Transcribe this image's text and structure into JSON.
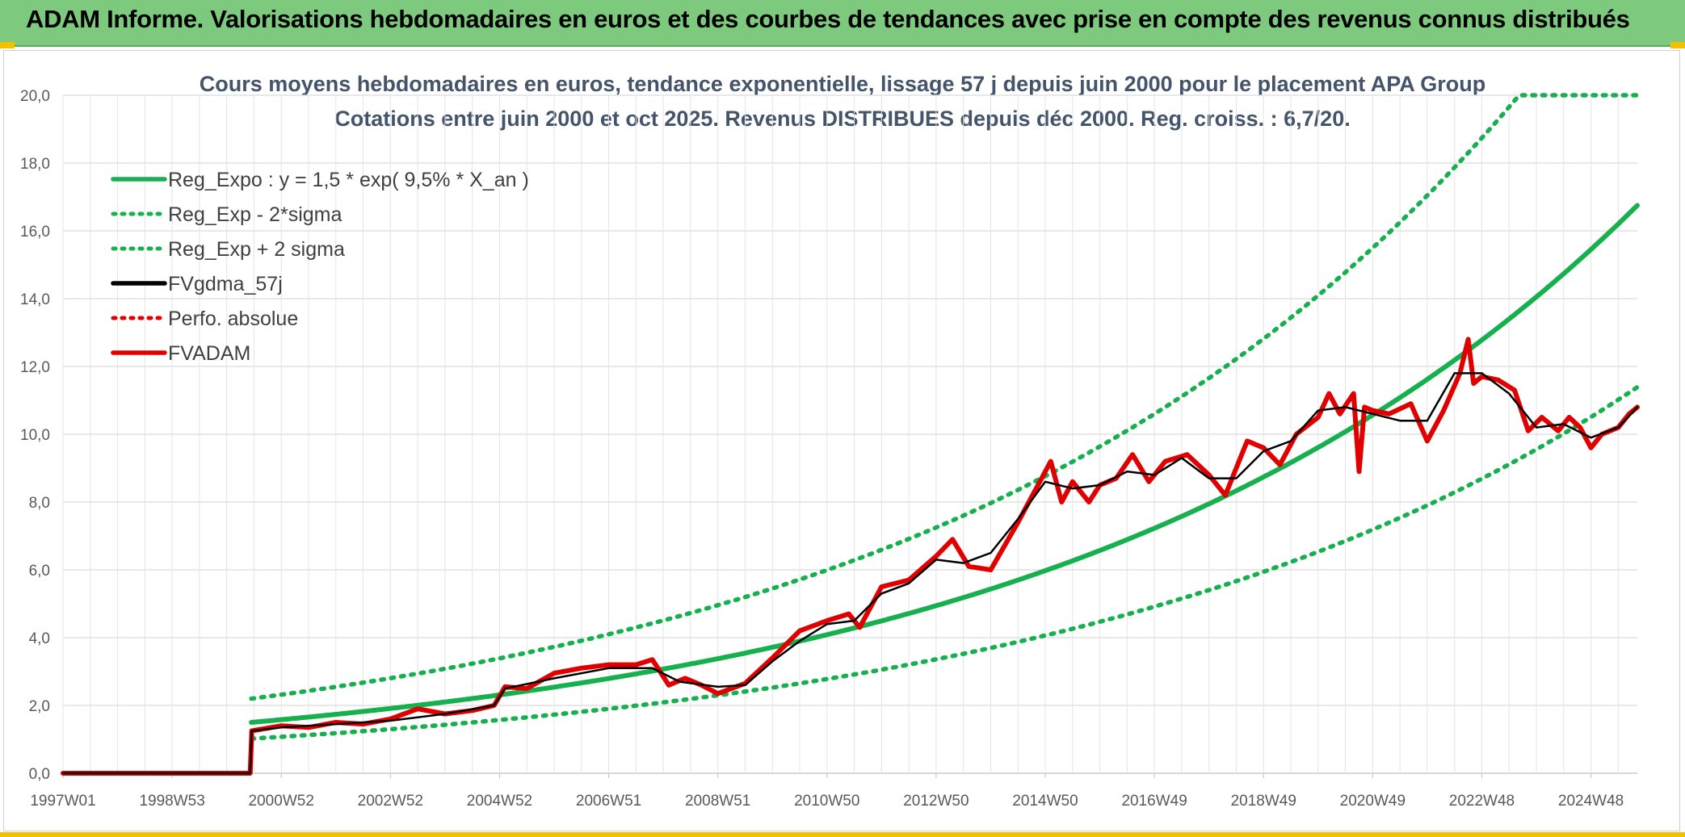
{
  "banner": {
    "title": "ADAM Informe. Valorisations hebdomadaires en euros et des courbes de tendances avec prise en compte des revenus connus distribués"
  },
  "chart_data": {
    "type": "line",
    "title": "Cours moyens hebdomadaires en euros, tendance exponentielle, lissage 57 j depuis juin 2000 pour le placement APA Group",
    "subtitle": "Cotations entre juin 2000 et oct 2025. Revenus DISTRIBUES depuis déc 2000. Reg. croiss. : 6,7/20.",
    "xlabel": "",
    "ylabel": "",
    "x_range": [
      1997.0,
      2025.85
    ],
    "ylim": [
      0,
      20
    ],
    "y_ticks": [
      "0,0",
      "2,0",
      "4,0",
      "6,0",
      "8,0",
      "10,0",
      "12,0",
      "14,0",
      "16,0",
      "18,0",
      "20,0"
    ],
    "x_ticks": [
      {
        "label": "1997W01",
        "x": 1997.0
      },
      {
        "label": "1998W53",
        "x": 1999.0
      },
      {
        "label": "2000W52",
        "x": 2001.0
      },
      {
        "label": "2002W52",
        "x": 2003.0
      },
      {
        "label": "2004W52",
        "x": 2005.0
      },
      {
        "label": "2006W51",
        "x": 2007.0
      },
      {
        "label": "2008W51",
        "x": 2009.0
      },
      {
        "label": "2010W50",
        "x": 2011.0
      },
      {
        "label": "2012W50",
        "x": 2013.0
      },
      {
        "label": "2014W50",
        "x": 2015.0
      },
      {
        "label": "2016W49",
        "x": 2017.0
      },
      {
        "label": "2018W49",
        "x": 2019.0
      },
      {
        "label": "2020W49",
        "x": 2021.0
      },
      {
        "label": "2022W48",
        "x": 2023.0
      },
      {
        "label": "2024W48",
        "x": 2025.0
      }
    ],
    "grid": true,
    "legend_position": "top-left",
    "series": [
      {
        "name": "Reg_Expo : y = 1,5 * exp( 9,5% *  X_an )",
        "color": "#17b04f",
        "style": "solid",
        "start_x": 2000.45,
        "base_value": 1.5,
        "growth_rate": 0.095
      },
      {
        "name": "Reg_Exp - 2*sigma",
        "color": "#17b04f",
        "style": "dotted",
        "start_x": 2000.45,
        "base_value": 1.02,
        "growth_rate": 0.095
      },
      {
        "name": "Reg_Exp + 2 sigma",
        "color": "#17b04f",
        "style": "dotted",
        "start_x": 2000.45,
        "base_value": 2.2,
        "growth_rate": 0.095,
        "cap": 20
      },
      {
        "name": "FVgdma_57j",
        "color": "#000000",
        "style": "solid",
        "smoothed_of": "FVADAM",
        "points": [
          [
            1997.0,
            0
          ],
          [
            2000.43,
            0
          ],
          [
            2000.46,
            1.25
          ],
          [
            2001,
            1.35
          ],
          [
            2002,
            1.45
          ],
          [
            2003,
            1.55
          ],
          [
            2004,
            1.75
          ],
          [
            2004.9,
            2.0
          ],
          [
            2005.1,
            2.5
          ],
          [
            2006,
            2.8
          ],
          [
            2007,
            3.1
          ],
          [
            2007.8,
            3.1
          ],
          [
            2008.3,
            2.7
          ],
          [
            2009,
            2.55
          ],
          [
            2009.5,
            2.6
          ],
          [
            2010,
            3.3
          ],
          [
            2010.5,
            3.9
          ],
          [
            2011,
            4.4
          ],
          [
            2011.5,
            4.5
          ],
          [
            2012,
            5.3
          ],
          [
            2012.5,
            5.6
          ],
          [
            2013,
            6.3
          ],
          [
            2013.5,
            6.2
          ],
          [
            2014,
            6.5
          ],
          [
            2014.5,
            7.5
          ],
          [
            2015,
            8.6
          ],
          [
            2015.5,
            8.4
          ],
          [
            2016,
            8.5
          ],
          [
            2016.5,
            8.9
          ],
          [
            2017,
            8.8
          ],
          [
            2017.5,
            9.3
          ],
          [
            2018,
            8.7
          ],
          [
            2018.5,
            8.7
          ],
          [
            2019,
            9.5
          ],
          [
            2019.5,
            9.8
          ],
          [
            2020,
            10.7
          ],
          [
            2020.5,
            10.8
          ],
          [
            2021,
            10.6
          ],
          [
            2021.5,
            10.4
          ],
          [
            2022,
            10.4
          ],
          [
            2022.5,
            11.8
          ],
          [
            2023,
            11.8
          ],
          [
            2023.5,
            11.2
          ],
          [
            2024,
            10.2
          ],
          [
            2024.5,
            10.3
          ],
          [
            2025,
            9.9
          ],
          [
            2025.5,
            10.2
          ],
          [
            2025.85,
            10.8
          ]
        ]
      },
      {
        "name": "Perfo. absolue",
        "color": "#e00000",
        "style": "dotted"
      },
      {
        "name": "FVADAM",
        "color": "#e00000",
        "style": "solid",
        "points": [
          [
            1997.0,
            0
          ],
          [
            2000.43,
            0
          ],
          [
            2000.46,
            1.25
          ],
          [
            2001,
            1.4
          ],
          [
            2001.5,
            1.35
          ],
          [
            2002,
            1.5
          ],
          [
            2002.5,
            1.45
          ],
          [
            2003,
            1.6
          ],
          [
            2003.5,
            1.9
          ],
          [
            2004,
            1.75
          ],
          [
            2004.5,
            1.85
          ],
          [
            2004.9,
            2.0
          ],
          [
            2005.1,
            2.55
          ],
          [
            2005.5,
            2.5
          ],
          [
            2006,
            2.95
          ],
          [
            2006.5,
            3.1
          ],
          [
            2007,
            3.2
          ],
          [
            2007.5,
            3.2
          ],
          [
            2007.8,
            3.35
          ],
          [
            2008.1,
            2.6
          ],
          [
            2008.4,
            2.8
          ],
          [
            2008.7,
            2.6
          ],
          [
            2009,
            2.35
          ],
          [
            2009.5,
            2.65
          ],
          [
            2010,
            3.4
          ],
          [
            2010.5,
            4.2
          ],
          [
            2011,
            4.5
          ],
          [
            2011.4,
            4.7
          ],
          [
            2011.6,
            4.3
          ],
          [
            2012,
            5.5
          ],
          [
            2012.5,
            5.7
          ],
          [
            2013,
            6.4
          ],
          [
            2013.3,
            6.9
          ],
          [
            2013.6,
            6.1
          ],
          [
            2014,
            6.0
          ],
          [
            2014.5,
            7.4
          ],
          [
            2014.9,
            8.6
          ],
          [
            2015.1,
            9.2
          ],
          [
            2015.3,
            8.0
          ],
          [
            2015.5,
            8.6
          ],
          [
            2015.8,
            8.0
          ],
          [
            2016,
            8.5
          ],
          [
            2016.3,
            8.7
          ],
          [
            2016.6,
            9.4
          ],
          [
            2016.9,
            8.6
          ],
          [
            2017.2,
            9.2
          ],
          [
            2017.6,
            9.4
          ],
          [
            2018,
            8.8
          ],
          [
            2018.3,
            8.2
          ],
          [
            2018.7,
            9.8
          ],
          [
            2019,
            9.6
          ],
          [
            2019.3,
            9.1
          ],
          [
            2019.6,
            10.0
          ],
          [
            2020,
            10.5
          ],
          [
            2020.2,
            11.2
          ],
          [
            2020.4,
            10.6
          ],
          [
            2020.65,
            11.2
          ],
          [
            2020.75,
            8.9
          ],
          [
            2020.85,
            10.8
          ],
          [
            2021,
            10.7
          ],
          [
            2021.3,
            10.6
          ],
          [
            2021.7,
            10.9
          ],
          [
            2022,
            9.8
          ],
          [
            2022.3,
            10.7
          ],
          [
            2022.6,
            11.8
          ],
          [
            2022.75,
            12.8
          ],
          [
            2022.85,
            11.5
          ],
          [
            2023,
            11.7
          ],
          [
            2023.3,
            11.6
          ],
          [
            2023.6,
            11.3
          ],
          [
            2023.85,
            10.1
          ],
          [
            2024.1,
            10.5
          ],
          [
            2024.4,
            10.1
          ],
          [
            2024.6,
            10.5
          ],
          [
            2024.8,
            10.2
          ],
          [
            2025.0,
            9.6
          ],
          [
            2025.2,
            10.0
          ],
          [
            2025.5,
            10.2
          ],
          [
            2025.7,
            10.6
          ],
          [
            2025.85,
            10.8
          ]
        ]
      }
    ]
  }
}
